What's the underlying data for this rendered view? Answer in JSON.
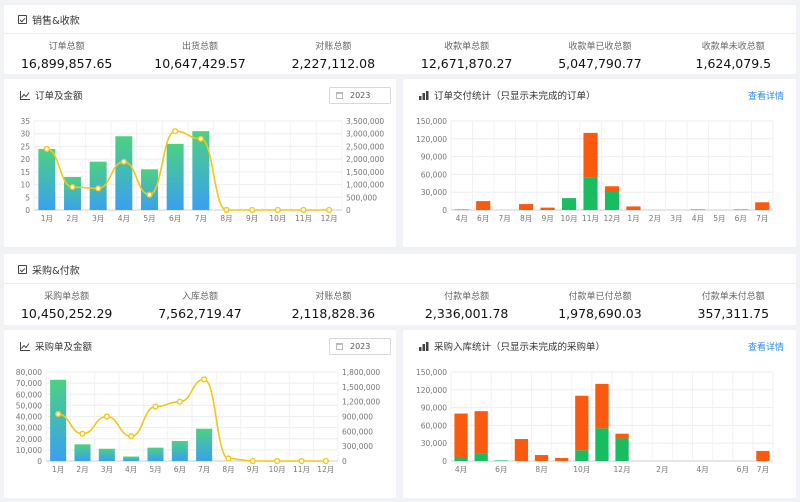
{
  "sales": {
    "title": "销售&收款",
    "stats": [
      {
        "label": "订单总额",
        "value": "16,899,857.65"
      },
      {
        "label": "出货总额",
        "value": "10,647,429.57"
      },
      {
        "label": "对账总额",
        "value": "2,227,112.08"
      },
      {
        "label": "收款单总额",
        "value": "12,671,870.27"
      },
      {
        "label": "收款单已收总额",
        "value": "5,047,790.77"
      },
      {
        "label": "收款单未收总额",
        "value": "1,624,079.5"
      }
    ]
  },
  "purchase": {
    "title": "采购&付款",
    "stats": [
      {
        "label": "采购单总额",
        "value": "10,450,252.29"
      },
      {
        "label": "入库总额",
        "value": "7,562,719.47"
      },
      {
        "label": "对账总额",
        "value": "2,118,828.36"
      },
      {
        "label": "付款单总额",
        "value": "2,336,001.78"
      },
      {
        "label": "付款单已付总额",
        "value": "1,978,690.03"
      },
      {
        "label": "付款单未付总额",
        "value": "357,311.75"
      }
    ]
  },
  "panels": {
    "order_amount": {
      "title": "订单及金额",
      "year": "2023"
    },
    "order_delivery": {
      "title": "订单交付统计（只显示未完成的订单）",
      "detail_link": "查看详情"
    },
    "purchase_amount": {
      "title": "采购单及金额",
      "year": "2023"
    },
    "purchase_inbound": {
      "title": "采购入库统计（只显示未完成的采购单）",
      "detail_link": "查看详情"
    }
  },
  "colors": {
    "bar_top": "#4cd181",
    "bar_bottom": "#3aa0f0",
    "line": "#f5c518",
    "stack_green": "#1abc62",
    "stack_orange": "#fa5a0f",
    "link": "#2d8cf0"
  },
  "chart_data": [
    {
      "type": "bar",
      "name": "order-amount-chart",
      "categories": [
        "1月",
        "2月",
        "3月",
        "4月",
        "5月",
        "6月",
        "7月",
        "8月",
        "9月",
        "10月",
        "11月",
        "12月"
      ],
      "series": [
        {
          "type": "bar",
          "axis": "left",
          "values": [
            24,
            13,
            19,
            29,
            16,
            26,
            31,
            0,
            0,
            0,
            0,
            0
          ]
        },
        {
          "type": "line",
          "axis": "right",
          "values": [
            2400000,
            900000,
            850000,
            1900000,
            600000,
            3100000,
            2800000,
            0,
            0,
            0,
            0,
            0
          ]
        }
      ],
      "ylim_left": [
        0,
        35
      ],
      "yticks_left": [
        "0",
        "5",
        "10",
        "15",
        "20",
        "25",
        "30",
        "35"
      ],
      "ylim_right": [
        0,
        3500000
      ],
      "yticks_right": [
        "0",
        "500,000",
        "1,000,000",
        "1,500,000",
        "2,000,000",
        "2,500,000",
        "3,000,000",
        "3,500,000"
      ]
    },
    {
      "type": "bar",
      "name": "order-delivery-chart",
      "stacked": true,
      "categories": [
        "4月",
        "6月",
        "7月",
        "8月",
        "9月",
        "10月",
        "11月",
        "12月",
        "1月",
        "2月",
        "3月",
        "4月",
        "5月",
        "6月",
        "7月"
      ],
      "x_tick_labels": [
        "4月",
        "6月",
        "7月",
        "8月",
        "9月",
        "10月",
        "11月",
        "12月",
        "1月",
        "2月",
        "3月",
        "4月",
        "5月",
        "6月",
        "7月"
      ],
      "series": [
        {
          "color": "green",
          "values": [
            0,
            0,
            0,
            0,
            0,
            20000,
            55000,
            32000,
            0,
            0,
            0,
            0,
            0,
            0,
            0
          ]
        },
        {
          "color": "orange",
          "values": [
            1000,
            15000,
            0,
            10000,
            4000,
            0,
            75000,
            8000,
            6000,
            0,
            0,
            1000,
            0,
            1000,
            13000
          ]
        }
      ],
      "ylim": [
        0,
        150000
      ],
      "yticks": [
        "0",
        "30,000",
        "60,000",
        "90,000",
        "120,000",
        "150,000"
      ]
    },
    {
      "type": "bar",
      "name": "purchase-amount-chart",
      "categories": [
        "1月",
        "2月",
        "3月",
        "4月",
        "5月",
        "6月",
        "7月",
        "8月",
        "9月",
        "10月",
        "11月",
        "12月"
      ],
      "series": [
        {
          "type": "bar",
          "axis": "left",
          "values": [
            73000,
            15000,
            11000,
            4000,
            12000,
            18000,
            29000,
            0,
            0,
            0,
            0,
            0
          ]
        },
        {
          "type": "line",
          "axis": "right",
          "values": [
            950000,
            550000,
            900000,
            500000,
            1100000,
            1200000,
            1650000,
            50000,
            0,
            0,
            0,
            0
          ]
        }
      ],
      "ylim_left": [
        0,
        80000
      ],
      "yticks_left": [
        "0",
        "10,000",
        "20,000",
        "30,000",
        "40,000",
        "50,000",
        "60,000",
        "70,000",
        "80,000"
      ],
      "ylim_right": [
        0,
        1800000
      ],
      "yticks_right": [
        "0",
        "300,000",
        "600,000",
        "900,000",
        "1,200,000",
        "1,500,000",
        "1,800,000"
      ]
    },
    {
      "type": "bar",
      "name": "purchase-inbound-chart",
      "stacked": true,
      "categories": [
        "4月",
        "5月",
        "6月",
        "7月",
        "8月",
        "9月",
        "10月",
        "11月",
        "12月",
        "1月",
        "2月",
        "3月",
        "4月",
        "5月",
        "6月",
        "7月"
      ],
      "x_tick_labels": [
        "4月",
        "",
        "6月",
        "",
        "8月",
        "",
        "10月",
        "",
        "12月",
        "",
        "2月",
        "",
        "4月",
        "",
        "6月",
        ""
      ],
      "extra_labels": [
        "7月"
      ],
      "series": [
        {
          "color": "green",
          "values": [
            5000,
            12000,
            1000,
            0,
            0,
            0,
            18000,
            55000,
            38000,
            0,
            0,
            0,
            0,
            0,
            0,
            0
          ]
        },
        {
          "color": "orange",
          "values": [
            75000,
            72000,
            0,
            37000,
            10000,
            5000,
            92000,
            75000,
            8000,
            0,
            0,
            0,
            0,
            0,
            0,
            17000
          ]
        }
      ],
      "ylim": [
        0,
        150000
      ],
      "yticks": [
        "0",
        "30,000",
        "60,000",
        "90,000",
        "120,000",
        "150,000"
      ]
    }
  ]
}
